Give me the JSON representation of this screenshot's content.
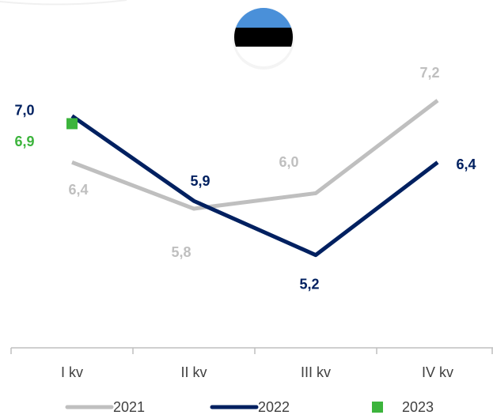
{
  "chart_data": {
    "type": "line",
    "categories": [
      "I kv",
      "II kv",
      "III kv",
      "IV kv"
    ],
    "series": [
      {
        "name": "2021",
        "color": "#bfbfbf",
        "values": [
          6.4,
          5.8,
          6.0,
          7.2
        ],
        "value_labels": [
          "6,4",
          "5,8",
          "6,0",
          "7,2"
        ]
      },
      {
        "name": "2022",
        "color": "#002060",
        "values": [
          7.0,
          5.9,
          5.2,
          6.4
        ],
        "value_labels": [
          "7,0",
          "5,9",
          "5,2",
          "6,4"
        ]
      },
      {
        "name": "2023",
        "color": "#3cb43c",
        "marker": "square",
        "values": [
          6.9,
          null,
          null,
          null
        ],
        "value_labels": [
          "6,9",
          null,
          null,
          null
        ]
      }
    ],
    "ylim": [
      4,
      8.5
    ]
  }
}
